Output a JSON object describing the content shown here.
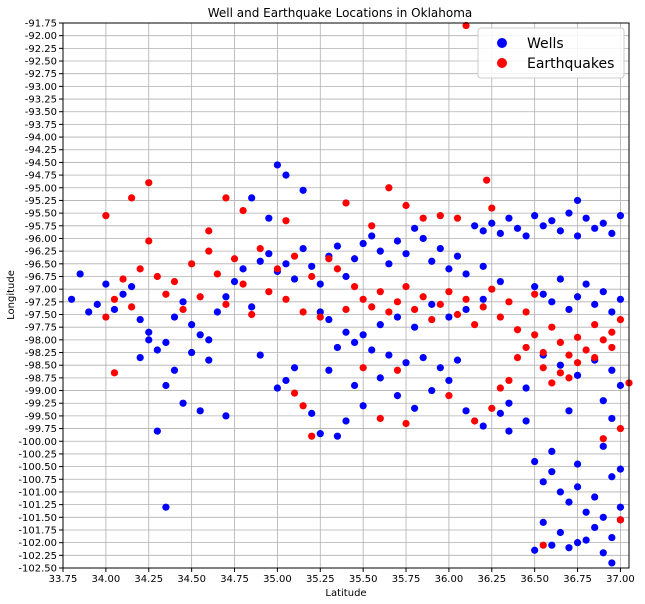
{
  "chart_data": {
    "type": "scatter",
    "title": "Well and Earthquake Locations in Oklahoma",
    "xlabel": "Latitude",
    "ylabel": "Longitude",
    "xlim": [
      33.75,
      37.05
    ],
    "ylim": [
      -102.5,
      -91.75
    ],
    "y_inverted": true,
    "grid": true,
    "legend_position": "top-right",
    "x_ticks": [
      "33.75",
      "34.00",
      "34.25",
      "34.50",
      "34.75",
      "35.00",
      "35.25",
      "35.50",
      "35.75",
      "36.00",
      "36.25",
      "36.50",
      "36.75",
      "37.00"
    ],
    "y_ticks": [
      "-91.75",
      "-92.00",
      "-92.25",
      "-92.50",
      "-92.75",
      "-93.00",
      "-93.25",
      "-93.50",
      "-93.75",
      "-94.00",
      "-94.25",
      "-94.50",
      "-94.75",
      "-95.00",
      "-95.25",
      "-95.50",
      "-95.75",
      "-96.00",
      "-96.25",
      "-96.50",
      "-96.75",
      "-97.00",
      "-97.25",
      "-97.50",
      "-97.75",
      "-98.00",
      "-98.25",
      "-98.50",
      "-98.75",
      "-99.00",
      "-99.25",
      "-99.50",
      "-99.75",
      "-100.00",
      "-100.25",
      "-100.50",
      "-100.75",
      "-101.00",
      "-101.25",
      "-101.50",
      "-101.75",
      "-102.00",
      "-102.25",
      "-102.50"
    ],
    "series": [
      {
        "name": "Wells",
        "color": "#0000ff",
        "points": [
          [
            33.8,
            -97.2
          ],
          [
            33.85,
            -96.7
          ],
          [
            33.9,
            -97.45
          ],
          [
            33.95,
            -97.3
          ],
          [
            34.0,
            -96.9
          ],
          [
            34.05,
            -97.4
          ],
          [
            34.1,
            -97.1
          ],
          [
            34.15,
            -96.95
          ],
          [
            34.2,
            -97.6
          ],
          [
            34.25,
            -97.85
          ],
          [
            34.3,
            -98.2
          ],
          [
            34.35,
            -98.05
          ],
          [
            34.4,
            -97.55
          ],
          [
            34.45,
            -97.25
          ],
          [
            34.5,
            -97.7
          ],
          [
            34.55,
            -97.9
          ],
          [
            34.6,
            -98.0
          ],
          [
            34.65,
            -97.45
          ],
          [
            34.7,
            -97.15
          ],
          [
            34.75,
            -96.85
          ],
          [
            34.8,
            -96.6
          ],
          [
            34.85,
            -97.35
          ],
          [
            34.9,
            -96.45
          ],
          [
            34.95,
            -96.3
          ],
          [
            35.0,
            -96.65
          ],
          [
            35.05,
            -96.5
          ],
          [
            35.1,
            -96.8
          ],
          [
            35.15,
            -96.2
          ],
          [
            35.2,
            -96.55
          ],
          [
            35.25,
            -96.9
          ],
          [
            35.3,
            -96.35
          ],
          [
            35.35,
            -96.15
          ],
          [
            35.4,
            -96.75
          ],
          [
            35.45,
            -96.4
          ],
          [
            35.5,
            -96.1
          ],
          [
            35.55,
            -95.95
          ],
          [
            35.6,
            -96.25
          ],
          [
            35.65,
            -96.5
          ],
          [
            35.7,
            -96.05
          ],
          [
            35.75,
            -96.3
          ],
          [
            35.8,
            -95.8
          ],
          [
            35.85,
            -96.0
          ],
          [
            35.9,
            -96.45
          ],
          [
            35.95,
            -96.2
          ],
          [
            36.0,
            -96.6
          ],
          [
            36.05,
            -96.35
          ],
          [
            36.1,
            -96.7
          ],
          [
            36.2,
            -96.55
          ],
          [
            36.3,
            -96.85
          ],
          [
            34.4,
            -98.6
          ],
          [
            34.5,
            -98.25
          ],
          [
            34.6,
            -98.4
          ],
          [
            34.35,
            -98.9
          ],
          [
            34.45,
            -99.25
          ],
          [
            34.55,
            -99.4
          ],
          [
            34.3,
            -99.8
          ],
          [
            34.7,
            -99.5
          ],
          [
            34.2,
            -98.35
          ],
          [
            34.25,
            -98.0
          ],
          [
            34.9,
            -98.3
          ],
          [
            35.0,
            -98.95
          ],
          [
            35.05,
            -98.8
          ],
          [
            35.1,
            -98.55
          ],
          [
            35.2,
            -99.45
          ],
          [
            35.25,
            -99.85
          ],
          [
            35.3,
            -98.6
          ],
          [
            35.35,
            -99.9
          ],
          [
            35.4,
            -99.6
          ],
          [
            35.45,
            -98.9
          ],
          [
            35.5,
            -99.3
          ],
          [
            35.6,
            -98.75
          ],
          [
            35.7,
            -99.1
          ],
          [
            35.8,
            -99.35
          ],
          [
            35.9,
            -99.0
          ],
          [
            36.0,
            -98.8
          ],
          [
            36.1,
            -99.4
          ],
          [
            36.2,
            -99.7
          ],
          [
            35.75,
            -98.45
          ],
          [
            35.95,
            -98.55
          ],
          [
            36.35,
            -99.25
          ],
          [
            36.45,
            -99.6
          ],
          [
            34.35,
            -101.3
          ],
          [
            35.0,
            -94.55
          ],
          [
            35.05,
            -94.75
          ],
          [
            35.15,
            -95.05
          ],
          [
            34.85,
            -95.2
          ],
          [
            34.95,
            -95.6
          ],
          [
            35.3,
            -97.6
          ],
          [
            35.4,
            -97.85
          ],
          [
            35.5,
            -97.9
          ],
          [
            35.6,
            -97.7
          ],
          [
            35.7,
            -97.55
          ],
          [
            35.8,
            -97.75
          ],
          [
            35.9,
            -97.3
          ],
          [
            36.0,
            -97.55
          ],
          [
            36.1,
            -97.4
          ],
          [
            36.2,
            -97.2
          ],
          [
            35.25,
            -97.45
          ],
          [
            35.35,
            -98.15
          ],
          [
            35.45,
            -98.05
          ],
          [
            35.55,
            -98.2
          ],
          [
            35.65,
            -98.3
          ],
          [
            35.85,
            -98.35
          ],
          [
            36.05,
            -98.4
          ],
          [
            36.15,
            -95.75
          ],
          [
            36.2,
            -95.85
          ],
          [
            36.25,
            -95.7
          ],
          [
            36.3,
            -95.9
          ],
          [
            36.35,
            -95.6
          ],
          [
            36.4,
            -95.8
          ],
          [
            36.45,
            -95.95
          ],
          [
            36.5,
            -95.55
          ],
          [
            36.55,
            -95.75
          ],
          [
            36.6,
            -95.65
          ],
          [
            36.65,
            -95.85
          ],
          [
            36.7,
            -95.5
          ],
          [
            36.75,
            -95.95
          ],
          [
            36.8,
            -95.6
          ],
          [
            36.85,
            -95.8
          ],
          [
            36.9,
            -95.7
          ],
          [
            36.95,
            -95.9
          ],
          [
            37.0,
            -95.55
          ],
          [
            36.75,
            -95.25
          ],
          [
            36.5,
            -96.95
          ],
          [
            36.55,
            -97.1
          ],
          [
            36.6,
            -97.25
          ],
          [
            36.65,
            -96.8
          ],
          [
            36.7,
            -97.4
          ],
          [
            36.75,
            -97.15
          ],
          [
            36.8,
            -96.9
          ],
          [
            36.85,
            -97.3
          ],
          [
            36.9,
            -97.05
          ],
          [
            36.95,
            -97.45
          ],
          [
            37.0,
            -97.2
          ],
          [
            36.55,
            -98.3
          ],
          [
            36.65,
            -98.5
          ],
          [
            36.75,
            -98.7
          ],
          [
            36.85,
            -98.4
          ],
          [
            36.95,
            -98.6
          ],
          [
            37.0,
            -98.9
          ],
          [
            36.45,
            -98.95
          ],
          [
            36.9,
            -99.2
          ],
          [
            36.95,
            -99.55
          ],
          [
            36.7,
            -99.4
          ],
          [
            36.3,
            -99.45
          ],
          [
            36.35,
            -99.8
          ],
          [
            36.5,
            -100.4
          ],
          [
            36.55,
            -100.8
          ],
          [
            36.6,
            -100.6
          ],
          [
            36.65,
            -101.0
          ],
          [
            36.7,
            -101.2
          ],
          [
            36.75,
            -100.9
          ],
          [
            36.8,
            -101.4
          ],
          [
            36.85,
            -101.1
          ],
          [
            36.9,
            -101.5
          ],
          [
            36.95,
            -100.7
          ],
          [
            37.0,
            -101.3
          ],
          [
            36.55,
            -101.6
          ],
          [
            36.65,
            -101.8
          ],
          [
            36.75,
            -102.0
          ],
          [
            36.85,
            -101.7
          ],
          [
            36.95,
            -101.9
          ],
          [
            37.0,
            -101.55
          ],
          [
            36.6,
            -102.05
          ],
          [
            36.7,
            -102.1
          ],
          [
            36.8,
            -101.95
          ],
          [
            36.9,
            -102.2
          ],
          [
            36.5,
            -102.15
          ],
          [
            36.95,
            -102.4
          ],
          [
            36.6,
            -100.2
          ],
          [
            36.75,
            -100.45
          ],
          [
            36.9,
            -100.1
          ],
          [
            37.0,
            -100.55
          ]
        ]
      },
      {
        "name": "Earthquakes",
        "color": "#ff0000",
        "points": [
          [
            35.5,
            -97.2
          ],
          [
            35.55,
            -97.35
          ],
          [
            35.6,
            -97.05
          ],
          [
            35.65,
            -97.45
          ],
          [
            35.7,
            -97.25
          ],
          [
            35.75,
            -96.95
          ],
          [
            35.8,
            -97.4
          ],
          [
            35.85,
            -97.15
          ],
          [
            35.9,
            -97.6
          ],
          [
            35.95,
            -97.3
          ],
          [
            36.0,
            -97.05
          ],
          [
            36.05,
            -97.5
          ],
          [
            36.1,
            -97.2
          ],
          [
            36.15,
            -97.7
          ],
          [
            36.2,
            -97.35
          ],
          [
            36.25,
            -97.0
          ],
          [
            36.3,
            -97.55
          ],
          [
            36.35,
            -97.25
          ],
          [
            36.4,
            -97.8
          ],
          [
            36.45,
            -97.45
          ],
          [
            36.5,
            -97.1
          ],
          [
            35.45,
            -96.95
          ],
          [
            35.4,
            -97.4
          ],
          [
            35.35,
            -96.6
          ],
          [
            35.3,
            -96.4
          ],
          [
            36.45,
            -98.15
          ],
          [
            36.5,
            -97.9
          ],
          [
            36.55,
            -98.25
          ],
          [
            36.6,
            -97.75
          ],
          [
            36.65,
            -98.05
          ],
          [
            36.7,
            -98.3
          ],
          [
            36.75,
            -97.95
          ],
          [
            36.8,
            -98.2
          ],
          [
            36.85,
            -97.7
          ],
          [
            36.9,
            -98.0
          ],
          [
            36.95,
            -97.85
          ],
          [
            37.0,
            -97.6
          ],
          [
            36.55,
            -98.55
          ],
          [
            36.65,
            -98.65
          ],
          [
            36.75,
            -98.45
          ],
          [
            36.85,
            -98.35
          ],
          [
            36.95,
            -98.15
          ],
          [
            36.6,
            -98.85
          ],
          [
            36.7,
            -98.75
          ],
          [
            36.4,
            -98.35
          ],
          [
            36.35,
            -98.8
          ],
          [
            34.0,
            -97.55
          ],
          [
            34.05,
            -97.2
          ],
          [
            34.1,
            -96.8
          ],
          [
            34.15,
            -97.35
          ],
          [
            34.2,
            -96.6
          ],
          [
            34.25,
            -96.05
          ],
          [
            34.3,
            -96.75
          ],
          [
            34.35,
            -97.1
          ],
          [
            34.4,
            -96.85
          ],
          [
            34.45,
            -97.4
          ],
          [
            34.5,
            -96.5
          ],
          [
            34.55,
            -97.15
          ],
          [
            34.6,
            -96.25
          ],
          [
            34.65,
            -96.7
          ],
          [
            34.7,
            -97.3
          ],
          [
            34.75,
            -96.4
          ],
          [
            34.8,
            -96.9
          ],
          [
            34.85,
            -97.5
          ],
          [
            34.9,
            -96.2
          ],
          [
            34.95,
            -97.05
          ],
          [
            35.0,
            -96.6
          ],
          [
            35.05,
            -97.2
          ],
          [
            35.1,
            -96.35
          ],
          [
            35.15,
            -97.45
          ],
          [
            35.2,
            -96.75
          ],
          [
            35.25,
            -97.55
          ],
          [
            34.05,
            -98.65
          ],
          [
            34.25,
            -94.9
          ],
          [
            34.15,
            -95.2
          ],
          [
            34.7,
            -95.2
          ],
          [
            34.8,
            -95.45
          ],
          [
            34.6,
            -95.85
          ],
          [
            35.05,
            -95.65
          ],
          [
            34.0,
            -95.55
          ],
          [
            35.4,
            -95.3
          ],
          [
            35.55,
            -95.75
          ],
          [
            35.65,
            -95.0
          ],
          [
            35.75,
            -95.35
          ],
          [
            35.95,
            -95.55
          ],
          [
            36.1,
            -91.8
          ],
          [
            36.22,
            -94.85
          ],
          [
            36.25,
            -95.4
          ],
          [
            36.05,
            -95.6
          ],
          [
            35.85,
            -95.6
          ],
          [
            35.1,
            -99.05
          ],
          [
            35.15,
            -99.3
          ],
          [
            35.2,
            -99.9
          ],
          [
            35.6,
            -99.55
          ],
          [
            35.75,
            -99.65
          ],
          [
            36.0,
            -99.1
          ],
          [
            36.15,
            -99.6
          ],
          [
            36.25,
            -99.35
          ],
          [
            36.3,
            -98.95
          ],
          [
            35.7,
            -98.6
          ],
          [
            35.5,
            -98.55
          ],
          [
            37.0,
            -99.75
          ],
          [
            37.05,
            -98.85
          ],
          [
            36.55,
            -102.05
          ],
          [
            37.0,
            -101.55
          ],
          [
            36.9,
            -99.95
          ]
        ]
      }
    ]
  }
}
